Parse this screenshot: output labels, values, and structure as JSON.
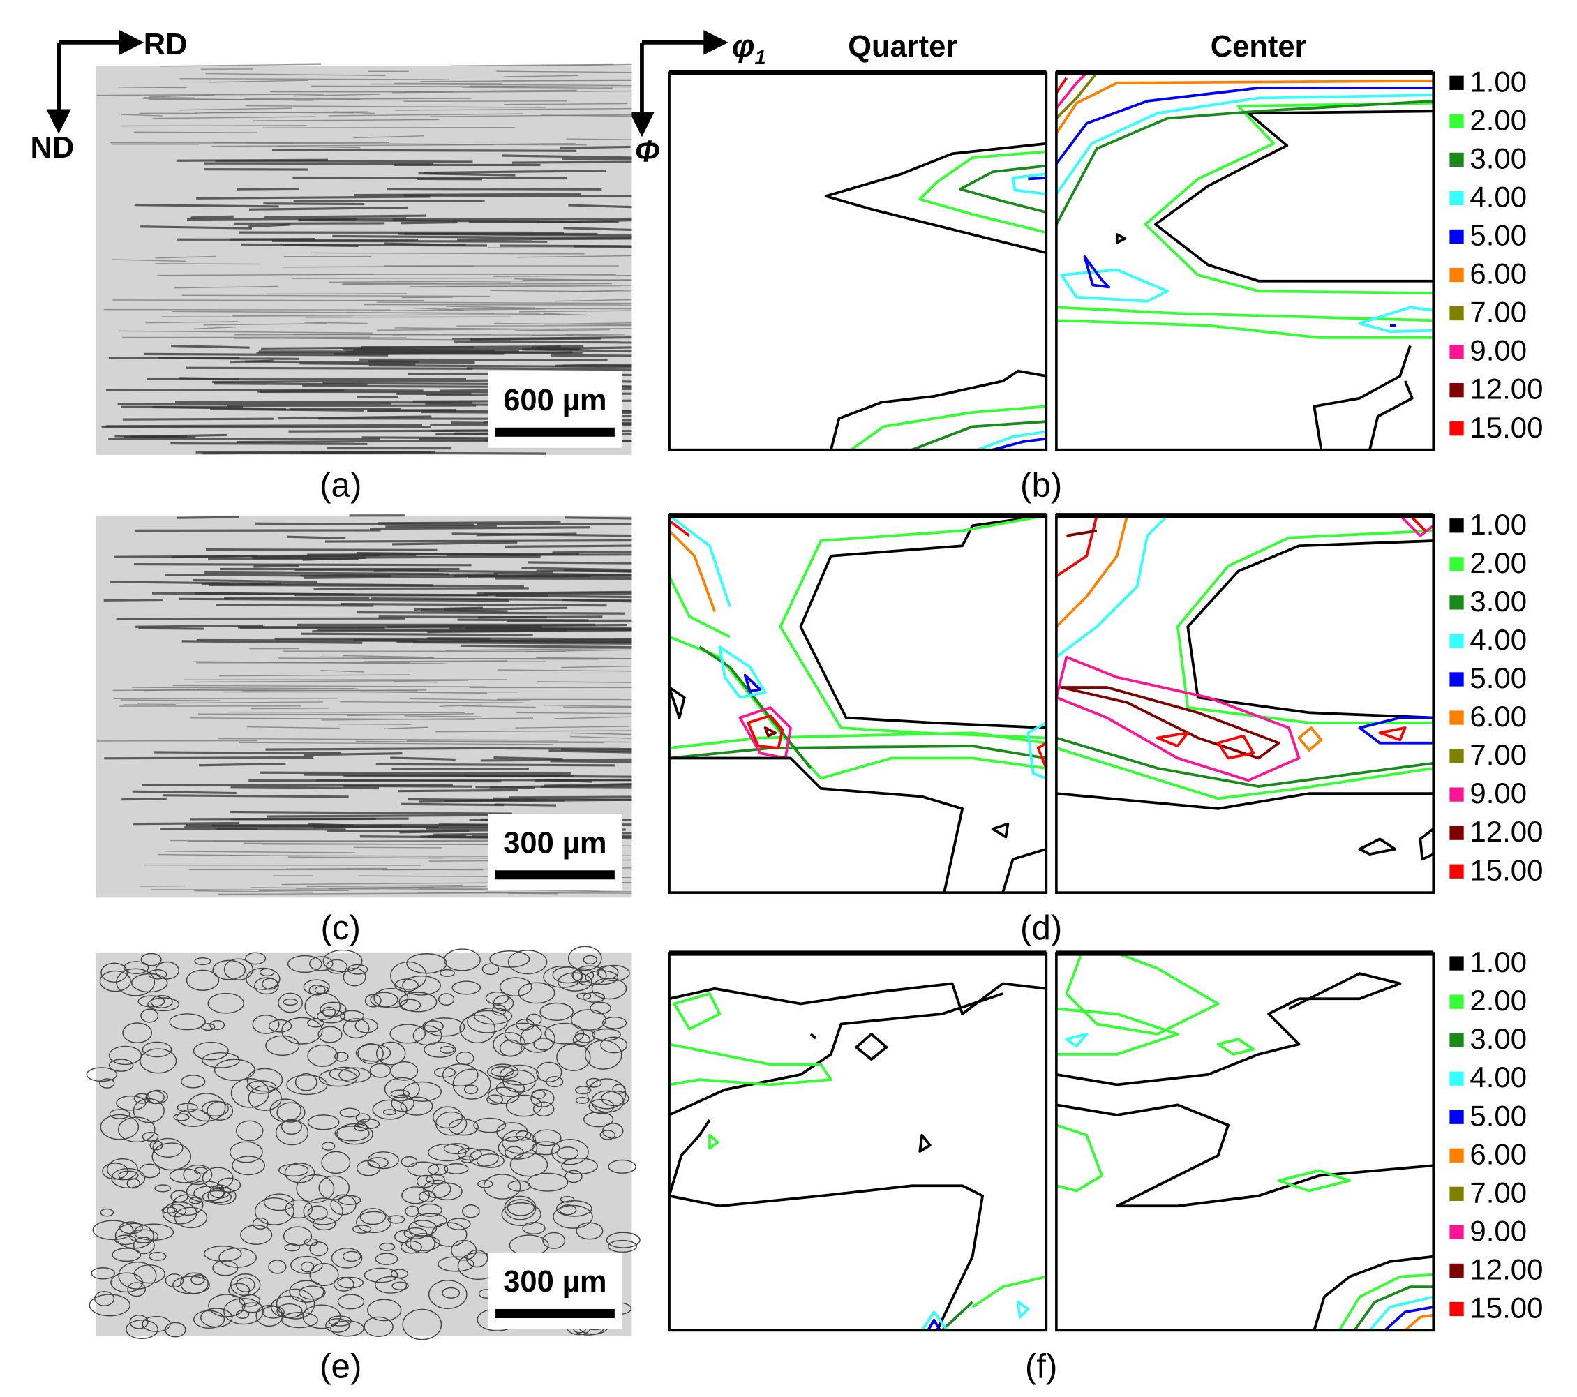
{
  "axes": {
    "rd": "RD",
    "nd": "ND",
    "phi1": "φ",
    "phi1_sub": "1",
    "phi": "Φ"
  },
  "headers": {
    "quarter": "Quarter",
    "center": "Center"
  },
  "panels": [
    {
      "micrograph_label": "(a)",
      "scale_bar": "600 µm",
      "odf_label": "(b)"
    },
    {
      "micrograph_label": "(c)",
      "scale_bar": "300 µm",
      "odf_label": "(d)"
    },
    {
      "micrograph_label": "(e)",
      "scale_bar": "300 µm",
      "odf_label": "(f)"
    }
  ],
  "legend": {
    "levels": [
      "1.00",
      "2.00",
      "3.00",
      "4.00",
      "5.00",
      "6.00",
      "7.00",
      "9.00",
      "12.00",
      "15.00"
    ],
    "colors": [
      "#000000",
      "#33ff33",
      "#1a8a1a",
      "#33ffff",
      "#0000ff",
      "#ff8000",
      "#808000",
      "#ff1493",
      "#800000",
      "#ff0000"
    ]
  }
}
